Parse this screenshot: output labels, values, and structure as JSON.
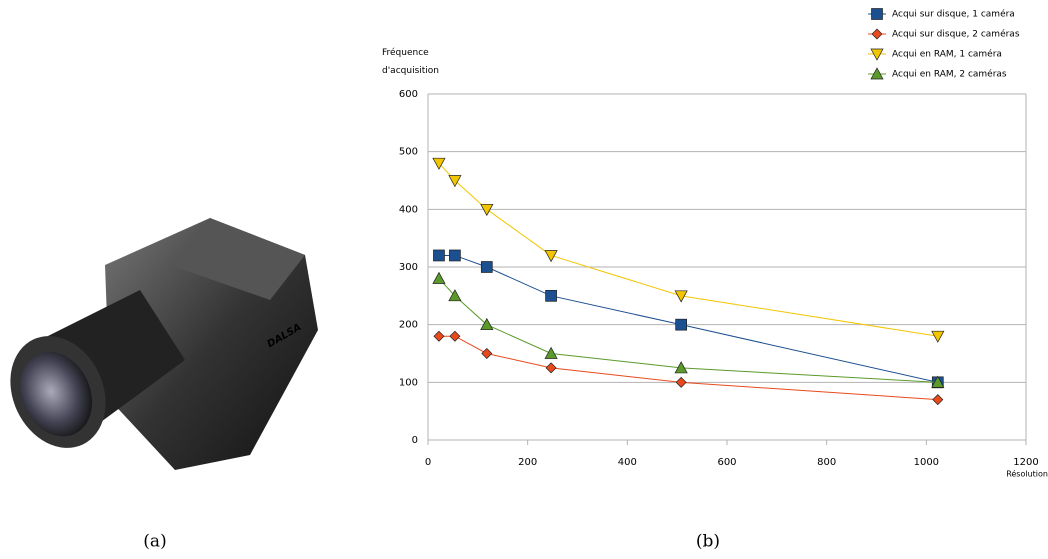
{
  "captions": [
    "(a)",
    "(b)"
  ],
  "chart_data": {
    "type": "line",
    "xlabel": "Résolution",
    "ylabel": "Fréquence d'acquisition",
    "x": [
      22,
      54,
      118,
      247,
      508,
      1023
    ],
    "xlim": [
      0,
      1200
    ],
    "xticks": [
      0,
      200,
      400,
      600,
      800,
      1000,
      1200
    ],
    "ylim": [
      0,
      600
    ],
    "yticks": [
      0,
      100,
      200,
      300,
      400,
      500,
      600
    ],
    "grid": true,
    "legend": "top-right",
    "series": [
      {
        "name": "Acqui sur disque, 1 caméra",
        "color": "#1b4f8f",
        "marker": "square",
        "values": [
          320,
          320,
          300,
          250,
          200,
          100
        ]
      },
      {
        "name": "Acqui sur disque, 2 caméras",
        "color": "#e84a1e",
        "marker": "diamond",
        "values": [
          180,
          180,
          150,
          125,
          100,
          70
        ]
      },
      {
        "name": "Acqui en RAM, 1 caméra",
        "color": "#f2c500",
        "marker": "triangle-down",
        "values": [
          480,
          450,
          400,
          320,
          250,
          180
        ]
      },
      {
        "name": "Acqui en RAM, 2 caméras",
        "color": "#5a9a2a",
        "marker": "triangle-up",
        "values": [
          280,
          250,
          200,
          150,
          125,
          100
        ]
      }
    ]
  }
}
